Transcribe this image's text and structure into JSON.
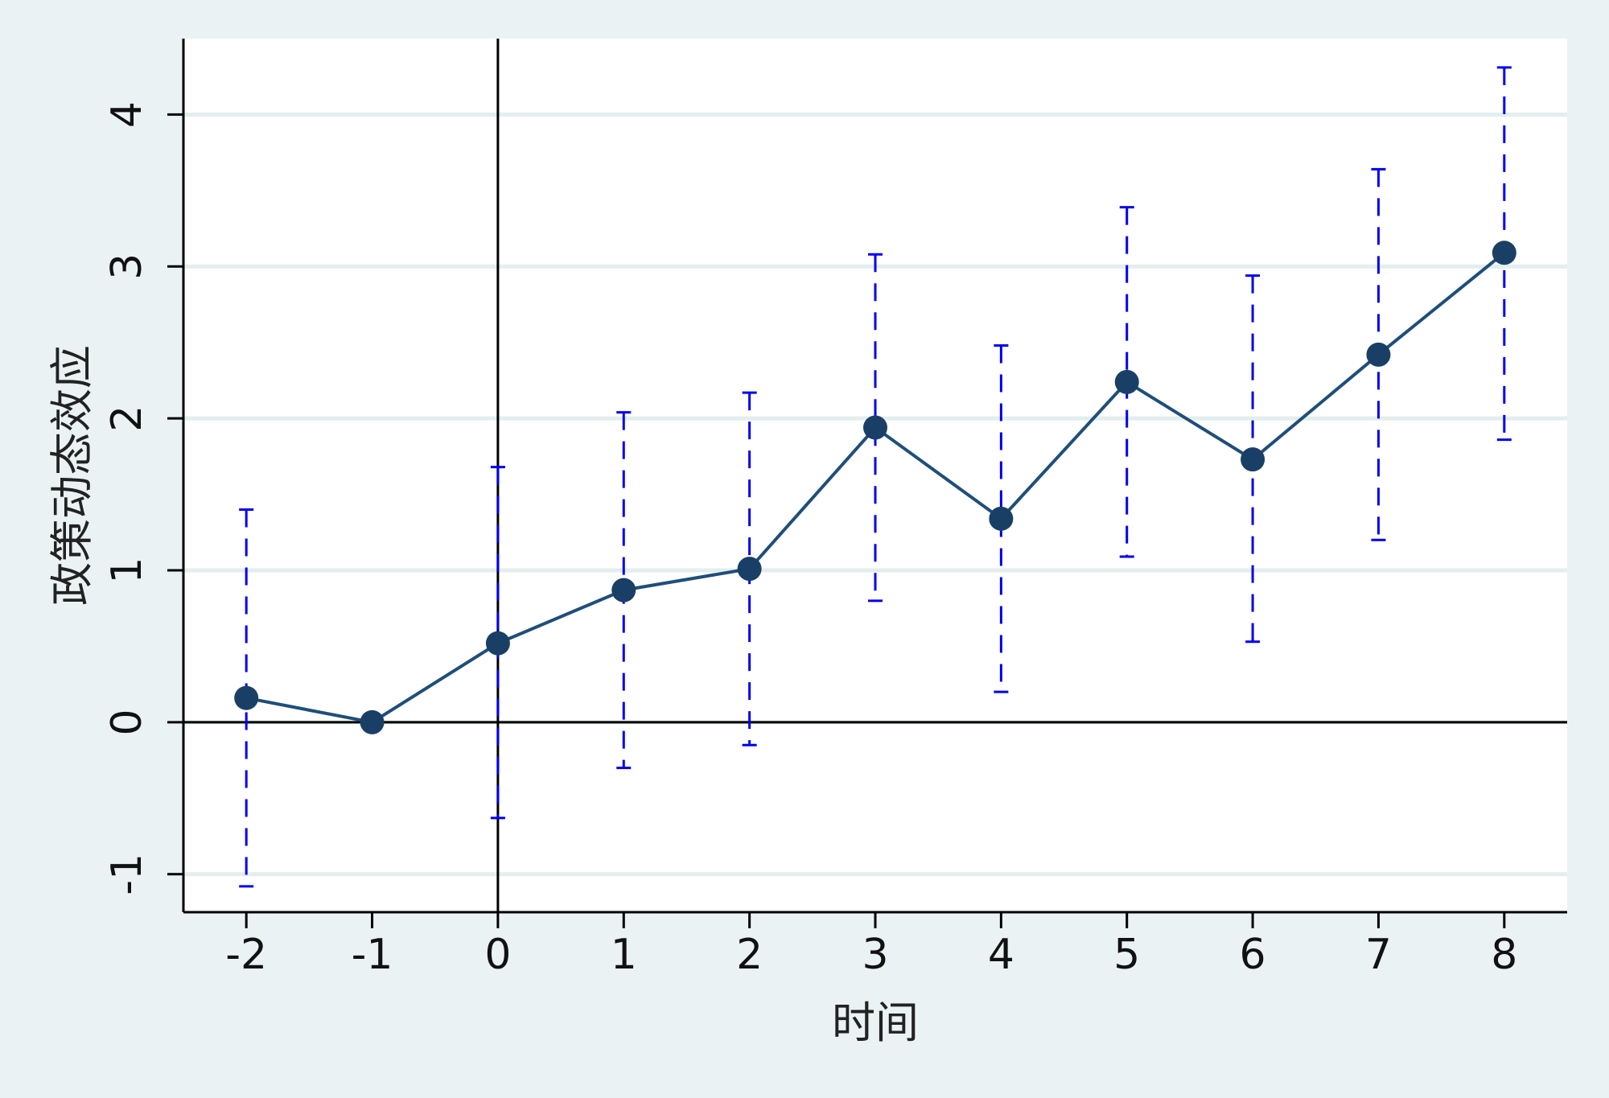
{
  "chart_data": {
    "type": "line",
    "title": "",
    "xlabel": "时间",
    "ylabel": "政策动态效应",
    "x": [
      -2,
      -1,
      0,
      1,
      2,
      3,
      4,
      5,
      6,
      7,
      8
    ],
    "xlim": [
      -2.5,
      8.5
    ],
    "ylim": [
      -1.25,
      4.5
    ],
    "xticks": [
      "-2",
      "-1",
      "0",
      "1",
      "2",
      "3",
      "4",
      "5",
      "6",
      "7",
      "8"
    ],
    "yticks": [
      "-1",
      "0",
      "1",
      "2",
      "3",
      "4"
    ],
    "grid": true,
    "series": [
      {
        "values": [
          0.16,
          0.0,
          0.52,
          0.87,
          1.01,
          1.94,
          1.34,
          2.24,
          1.73,
          2.42,
          3.09
        ],
        "ci_lower": [
          -1.08,
          null,
          -0.63,
          -0.3,
          -0.15,
          0.8,
          0.2,
          1.09,
          0.53,
          1.2,
          1.86
        ],
        "ci_upper": [
          1.4,
          null,
          1.68,
          2.04,
          2.17,
          3.08,
          2.48,
          3.39,
          2.94,
          3.64,
          4.31
        ]
      }
    ],
    "reference_lines": {
      "x": 0,
      "y": 0
    },
    "colors": {
      "line": "#1f4e79",
      "marker": "#1a3f66",
      "ci": "#0000ee",
      "grid": "#e3eeee",
      "axis": "#000000",
      "background": "#eaf2f3",
      "plot_background": "#ffffff"
    }
  }
}
